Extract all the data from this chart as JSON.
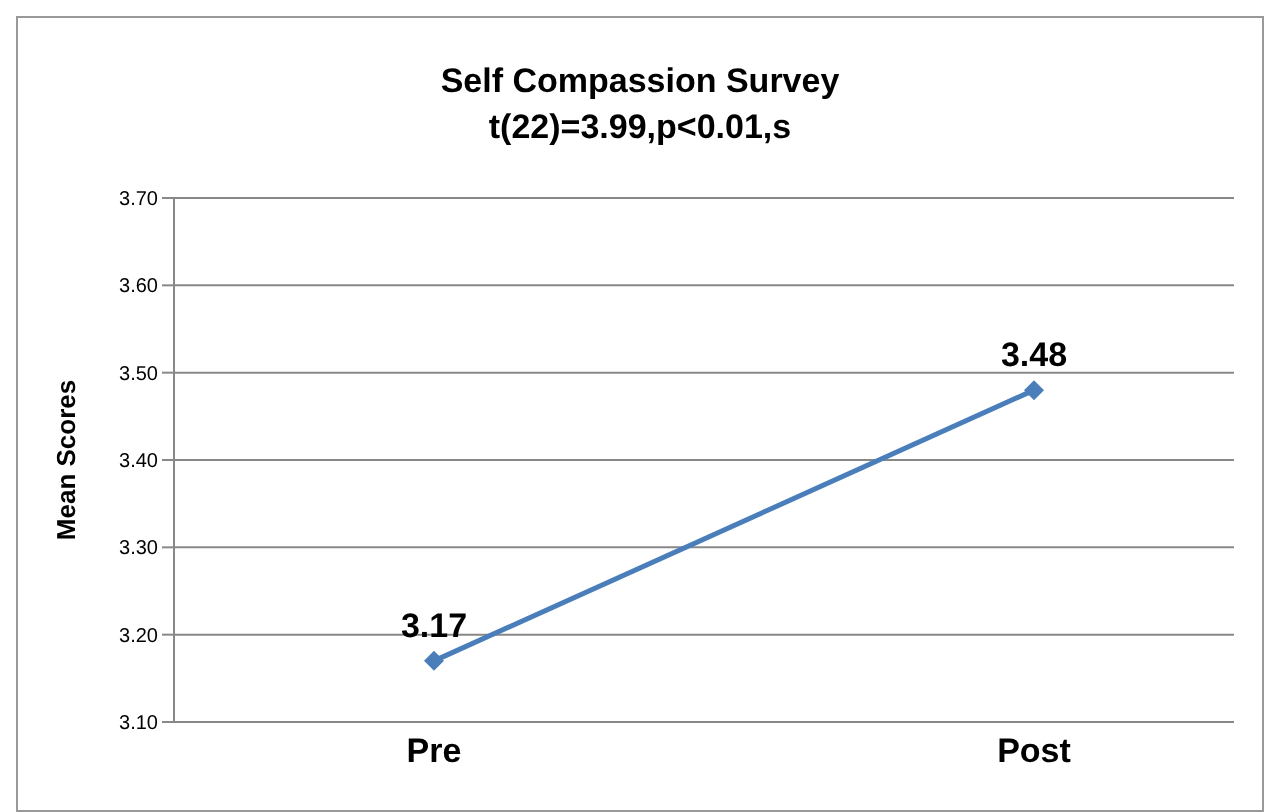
{
  "chart_data": {
    "type": "line",
    "title": "Self Compassion Survey",
    "subtitle": "t(22)=3.99,p<0.01,s",
    "ylabel": "Mean Scores",
    "categories": [
      "Pre",
      "Post"
    ],
    "series": [
      {
        "color": "#4a7ebb",
        "values": [
          3.17,
          3.48
        ]
      }
    ],
    "ylim": [
      3.1,
      3.7
    ],
    "yticks": [
      {
        "value": 3.1,
        "label": "3.10"
      },
      {
        "value": 3.2,
        "label": "3.20"
      },
      {
        "value": 3.3,
        "label": "3.30"
      },
      {
        "value": 3.4,
        "label": "3.40"
      },
      {
        "value": 3.5,
        "label": "3.50"
      },
      {
        "value": 3.6,
        "label": "3.60"
      },
      {
        "value": 3.7,
        "label": "3.70"
      }
    ],
    "grid": "y",
    "marker": "diamond",
    "line_style": "solid",
    "data_labels": true,
    "legend": false
  }
}
